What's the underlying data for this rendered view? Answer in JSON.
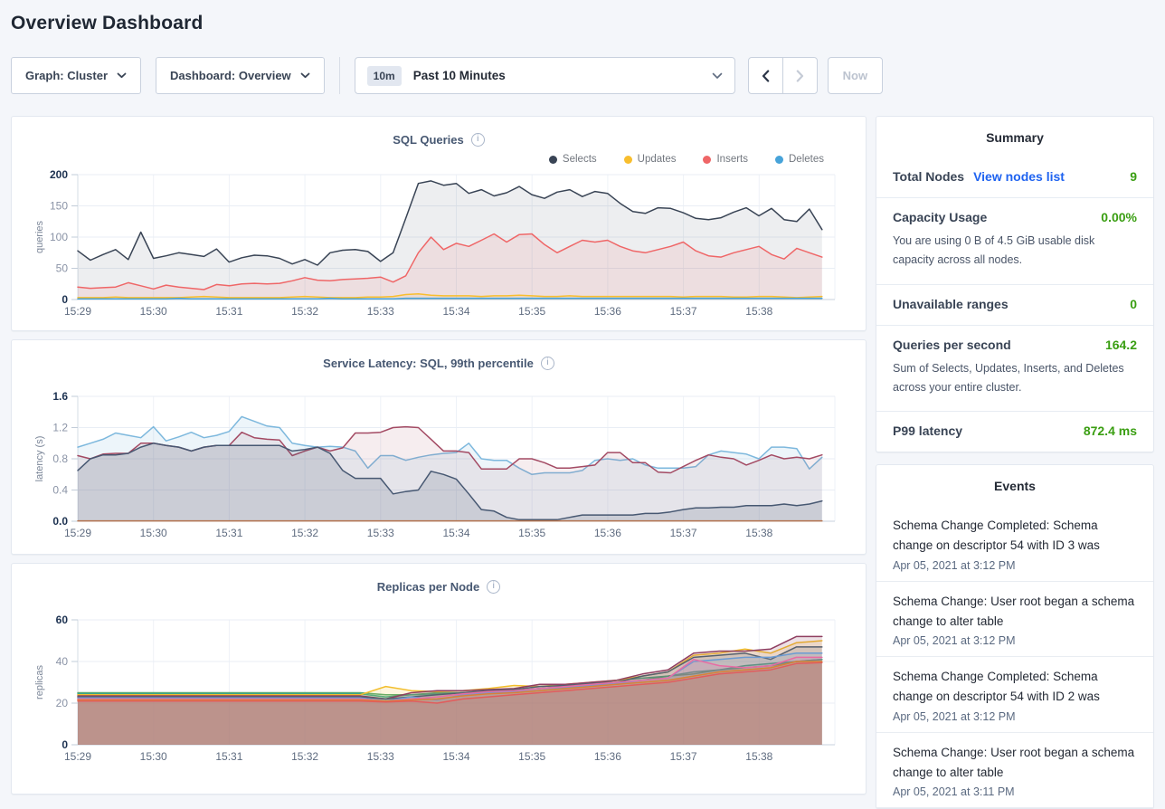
{
  "header": {
    "title": "Overview Dashboard"
  },
  "toolbar": {
    "graph_dropdown": "Graph: Cluster",
    "dashboard_dropdown": "Dashboard: Overview",
    "time_badge": "10m",
    "time_label": "Past 10 Minutes",
    "now_button": "Now"
  },
  "icons": {
    "chevron_down": "⌄",
    "chevron_left": "‹",
    "chevron_right": "›",
    "info": "i"
  },
  "colors": {
    "page_background": "#f4f6fa",
    "panel_border": "#e3e8f0",
    "link_blue": "#1f63f0",
    "value_green": "#3a9e12",
    "axis_text": "#5f6c80",
    "chart_title": "#475872"
  },
  "chart_data": [
    {
      "type": "area",
      "title": "SQL Queries",
      "unit": "queries",
      "y_max": 200,
      "y_ticks": [
        0,
        50,
        100,
        150,
        200
      ],
      "y_tick_labels": [
        "0",
        "50",
        "100",
        "150",
        "200"
      ],
      "x_ticks": [
        "15:29",
        "15:30",
        "15:31",
        "15:32",
        "15:33",
        "15:34",
        "15:35",
        "15:36",
        "15:37",
        "15:38"
      ],
      "x_span_minutes": 9.83,
      "show_legend": true,
      "series": [
        {
          "name": "Selects",
          "color": "#394455",
          "fill_opacity": 0.09,
          "values": [
            78,
            63,
            72,
            80,
            64,
            108,
            66,
            70,
            75,
            72,
            69,
            81,
            60,
            67,
            71,
            70,
            66,
            57,
            64,
            55,
            75,
            79,
            80,
            77,
            61,
            75,
            130,
            186,
            190,
            183,
            186,
            170,
            176,
            166,
            171,
            181,
            168,
            162,
            172,
            176,
            165,
            173,
            170,
            154,
            141,
            138,
            147,
            146,
            139,
            130,
            128,
            131,
            140,
            147,
            134,
            146,
            128,
            125,
            145,
            112
          ]
        },
        {
          "name": "Inserts",
          "color": "#ef6667",
          "fill_opacity": 0.11,
          "values": [
            20,
            18,
            19,
            20,
            27,
            22,
            17,
            23,
            20,
            18,
            16,
            24,
            22,
            25,
            26,
            25,
            26,
            30,
            35,
            31,
            30,
            32,
            33,
            34,
            36,
            28,
            38,
            75,
            100,
            80,
            90,
            85,
            95,
            105,
            92,
            104,
            105,
            88,
            75,
            85,
            95,
            92,
            95,
            85,
            78,
            75,
            80,
            85,
            92,
            78,
            70,
            68,
            75,
            80,
            85,
            72,
            65,
            82,
            75,
            68
          ]
        },
        {
          "name": "Updates",
          "color": "#f8be2e",
          "fill_opacity": 0.1,
          "values": [
            3,
            3,
            3,
            4,
            3,
            3,
            3,
            3,
            3,
            4,
            5,
            4,
            3,
            3,
            3,
            3,
            3,
            4,
            5,
            4,
            3,
            3,
            3,
            4,
            4,
            5,
            8,
            9,
            7,
            6,
            6,
            6,
            5,
            6,
            6,
            7,
            6,
            5,
            5,
            6,
            5,
            5,
            5,
            5,
            5,
            5,
            5,
            5,
            4,
            5,
            5,
            5,
            4,
            4,
            5,
            5,
            4,
            3,
            4,
            5
          ]
        },
        {
          "name": "Deletes",
          "color": "#47a3d9",
          "fill_opacity": 0.18,
          "values": [
            1,
            1,
            1,
            1,
            1,
            1,
            1,
            1,
            2,
            1,
            1,
            1,
            1,
            1,
            1,
            1,
            1,
            1,
            1,
            1,
            2,
            1,
            1,
            1,
            1,
            1,
            2,
            2,
            2,
            2,
            2,
            2,
            2,
            2,
            2,
            2,
            2,
            2,
            2,
            2,
            2,
            2,
            2,
            2,
            2,
            2,
            2,
            2,
            2,
            2,
            2,
            2,
            2,
            2,
            2,
            2,
            2,
            2,
            2,
            2
          ]
        }
      ],
      "legend_order": [
        "Selects",
        "Updates",
        "Inserts",
        "Deletes"
      ]
    },
    {
      "type": "area",
      "title": "Service Latency: SQL, 99th percentile",
      "unit": "latency (s)",
      "y_max": 1.6,
      "y_ticks": [
        0,
        0.4,
        0.8,
        1.2,
        1.6
      ],
      "y_tick_labels": [
        "0.0",
        "0.4",
        "0.8",
        "1.2",
        "1.6"
      ],
      "x_ticks": [
        "15:29",
        "15:30",
        "15:31",
        "15:32",
        "15:33",
        "15:34",
        "15:35",
        "15:36",
        "15:37",
        "15:38"
      ],
      "x_span_minutes": 9.83,
      "show_legend": false,
      "series": [
        {
          "name": "line-blue",
          "color": "#7db8dd",
          "fill_opacity": 0.14,
          "values": [
            0.95,
            1.0,
            1.05,
            1.13,
            1.1,
            1.07,
            1.21,
            1.03,
            1.08,
            1.14,
            1.07,
            1.1,
            1.15,
            1.34,
            1.28,
            1.22,
            1.2,
            1.0,
            0.97,
            0.95,
            0.96,
            0.95,
            0.9,
            0.68,
            0.84,
            0.84,
            0.78,
            0.82,
            0.85,
            0.87,
            0.88,
            1.0,
            0.8,
            0.78,
            0.78,
            0.68,
            0.6,
            0.62,
            0.62,
            0.62,
            0.65,
            0.78,
            0.8,
            0.78,
            0.8,
            0.72,
            0.68,
            0.68,
            0.68,
            0.7,
            0.85,
            0.9,
            0.88,
            0.86,
            0.8,
            0.95,
            0.95,
            0.93,
            0.67,
            0.82
          ]
        },
        {
          "name": "line-maroon",
          "color": "#a34a63",
          "fill_opacity": 0.1,
          "values": [
            0.84,
            0.8,
            0.86,
            0.87,
            0.87,
            1.0,
            1.0,
            0.97,
            0.95,
            0.9,
            0.95,
            0.97,
            0.97,
            1.14,
            1.07,
            1.05,
            1.04,
            0.84,
            0.9,
            0.95,
            0.9,
            0.94,
            1.13,
            1.13,
            1.14,
            1.2,
            1.21,
            1.2,
            1.05,
            0.9,
            0.9,
            0.88,
            0.67,
            0.67,
            0.67,
            0.8,
            0.8,
            0.75,
            0.68,
            0.68,
            0.7,
            0.72,
            0.88,
            0.88,
            0.75,
            0.75,
            0.63,
            0.62,
            0.7,
            0.78,
            0.85,
            0.82,
            0.8,
            0.72,
            0.78,
            0.85,
            0.8,
            0.82,
            0.8,
            0.85
          ]
        },
        {
          "name": "line-navy",
          "color": "#475872",
          "fill_opacity": 0.16,
          "values": [
            0.65,
            0.8,
            0.85,
            0.85,
            0.87,
            0.95,
            1.0,
            0.97,
            0.95,
            0.9,
            0.95,
            0.97,
            0.97,
            0.97,
            0.97,
            0.97,
            0.97,
            0.9,
            0.92,
            0.95,
            0.87,
            0.65,
            0.55,
            0.55,
            0.55,
            0.35,
            0.38,
            0.4,
            0.64,
            0.6,
            0.54,
            0.35,
            0.15,
            0.13,
            0.05,
            0.02,
            0.02,
            0.02,
            0.02,
            0.05,
            0.08,
            0.08,
            0.08,
            0.08,
            0.08,
            0.1,
            0.1,
            0.12,
            0.15,
            0.17,
            0.17,
            0.18,
            0.18,
            0.2,
            0.2,
            0.2,
            0.22,
            0.2,
            0.22,
            0.26
          ]
        },
        {
          "name": "line-flat",
          "color": "#b5734e",
          "fill_opacity": 0,
          "constant": 0.005,
          "points": 60
        }
      ]
    },
    {
      "type": "area",
      "title": "Replicas per Node",
      "unit": "replicas",
      "y_max": 60,
      "y_ticks": [
        0,
        20,
        40,
        60
      ],
      "y_tick_labels": [
        "0",
        "20",
        "40",
        "60"
      ],
      "x_ticks": [
        "15:29",
        "15:30",
        "15:31",
        "15:32",
        "15:33",
        "15:34",
        "15:35",
        "15:36",
        "15:37",
        "15:38"
      ],
      "x_span_minutes": 9.83,
      "show_legend": false,
      "series": [
        {
          "name": "node-1",
          "color": "#52a871",
          "fill_opacity": 0.16,
          "values": [
            25,
            25,
            25,
            25,
            25,
            25,
            25,
            25,
            25,
            25,
            25,
            25,
            24,
            24,
            25,
            25,
            26,
            26,
            27,
            28,
            29,
            30,
            31,
            33,
            34,
            36,
            37,
            38,
            40,
            41
          ]
        },
        {
          "name": "node-2",
          "color": "#3aa68b",
          "fill_opacity": 0.16,
          "values": [
            24.5,
            24.5,
            24.5,
            24.5,
            24.5,
            24.5,
            24.5,
            24.5,
            24.5,
            24.5,
            24.5,
            24.5,
            23,
            24,
            24.5,
            25,
            25.5,
            26,
            27,
            28,
            29,
            31,
            32,
            33,
            35,
            36,
            38,
            39,
            40,
            41
          ]
        },
        {
          "name": "node-3",
          "color": "#f2be2c",
          "fill_opacity": 0.16,
          "values": [
            24,
            24,
            24,
            24,
            24,
            24,
            24,
            24,
            24,
            24,
            24,
            24,
            28,
            26,
            25.5,
            26,
            27,
            28.5,
            28,
            29,
            30,
            31,
            33,
            35,
            43,
            44,
            46,
            44,
            49,
            50
          ]
        },
        {
          "name": "node-4",
          "color": "#8f3e60",
          "fill_opacity": 0.16,
          "values": [
            23.5,
            23.5,
            23.5,
            23.5,
            23.5,
            23.5,
            23.5,
            23.5,
            23.5,
            23.5,
            23.5,
            23.5,
            22,
            25,
            26,
            26,
            26.5,
            27,
            29,
            29,
            30,
            31,
            34,
            36,
            44,
            45,
            45,
            46,
            52,
            52
          ]
        },
        {
          "name": "node-5",
          "color": "#55606e",
          "fill_opacity": 0.16,
          "values": [
            23,
            23,
            23,
            23,
            23,
            23,
            23,
            23,
            23,
            23,
            23,
            23,
            22,
            23,
            24,
            25,
            26,
            26.5,
            28,
            28.5,
            29.5,
            30,
            33,
            35,
            42,
            43,
            44,
            41,
            47,
            47
          ]
        },
        {
          "name": "node-6",
          "color": "#6b9bd2",
          "fill_opacity": 0.16,
          "values": [
            22.5,
            22.5,
            22.5,
            22.5,
            22.5,
            22.5,
            22.5,
            22.5,
            22.5,
            22.5,
            22.5,
            22.5,
            21,
            23,
            21.5,
            24,
            25,
            25.5,
            27,
            27.5,
            28.5,
            29.5,
            31,
            32,
            40,
            41,
            42,
            42,
            44,
            44
          ]
        },
        {
          "name": "node-7",
          "color": "#e86ca4",
          "fill_opacity": 0.16,
          "values": [
            22,
            22,
            22,
            22,
            22,
            22,
            22,
            22,
            22,
            22,
            22,
            22,
            21,
            22,
            23,
            24.5,
            25.5,
            26,
            27,
            28,
            29,
            30,
            31,
            32,
            41,
            38,
            37,
            38,
            42,
            42
          ]
        },
        {
          "name": "node-8",
          "color": "#d98136",
          "fill_opacity": 0.16,
          "values": [
            21.5,
            21.5,
            21.5,
            21.5,
            21.5,
            21.5,
            21.5,
            21.5,
            21.5,
            21.5,
            21.5,
            21.5,
            21,
            21.5,
            22,
            23.5,
            24.5,
            25,
            26,
            27,
            28,
            29,
            30,
            31,
            33,
            35,
            36,
            37,
            40,
            40
          ]
        },
        {
          "name": "node-9",
          "color": "#e25c5c",
          "fill_opacity": 0.16,
          "values": [
            21,
            21,
            21,
            21,
            21,
            21,
            21,
            21,
            21,
            21,
            21,
            21,
            20.5,
            21,
            20,
            22,
            23,
            24,
            25,
            26,
            27,
            28,
            29,
            30,
            32,
            34,
            35,
            36,
            39,
            39.5
          ]
        }
      ]
    }
  ],
  "summary": {
    "title": "Summary",
    "rows": [
      {
        "label": "Total Nodes",
        "link": "View nodes list",
        "value": "9"
      },
      {
        "label": "Capacity Usage",
        "value": "0.00%",
        "description": "You are using 0 B of 4.5 GiB usable disk capacity across all nodes."
      },
      {
        "label": "Unavailable ranges",
        "value": "0"
      },
      {
        "label": "Queries per second",
        "value": "164.2",
        "description": "Sum of Selects, Updates, Inserts, and Deletes across your entire cluster."
      },
      {
        "label": "P99 latency",
        "value": "872.4 ms"
      }
    ]
  },
  "events": {
    "title": "Events",
    "items": [
      {
        "message": "Schema Change Completed: Schema change on descriptor 54 with ID 3 was",
        "timestamp": "Apr 05, 2021 at 3:12 PM"
      },
      {
        "message": "Schema Change: User root began a schema change to alter table",
        "timestamp": "Apr 05, 2021 at 3:12 PM"
      },
      {
        "message": "Schema Change Completed: Schema change on descriptor 54 with ID 2 was",
        "timestamp": "Apr 05, 2021 at 3:12 PM"
      },
      {
        "message": "Schema Change: User root began a schema change to alter table",
        "timestamp": "Apr 05, 2021 at 3:11 PM"
      }
    ]
  }
}
